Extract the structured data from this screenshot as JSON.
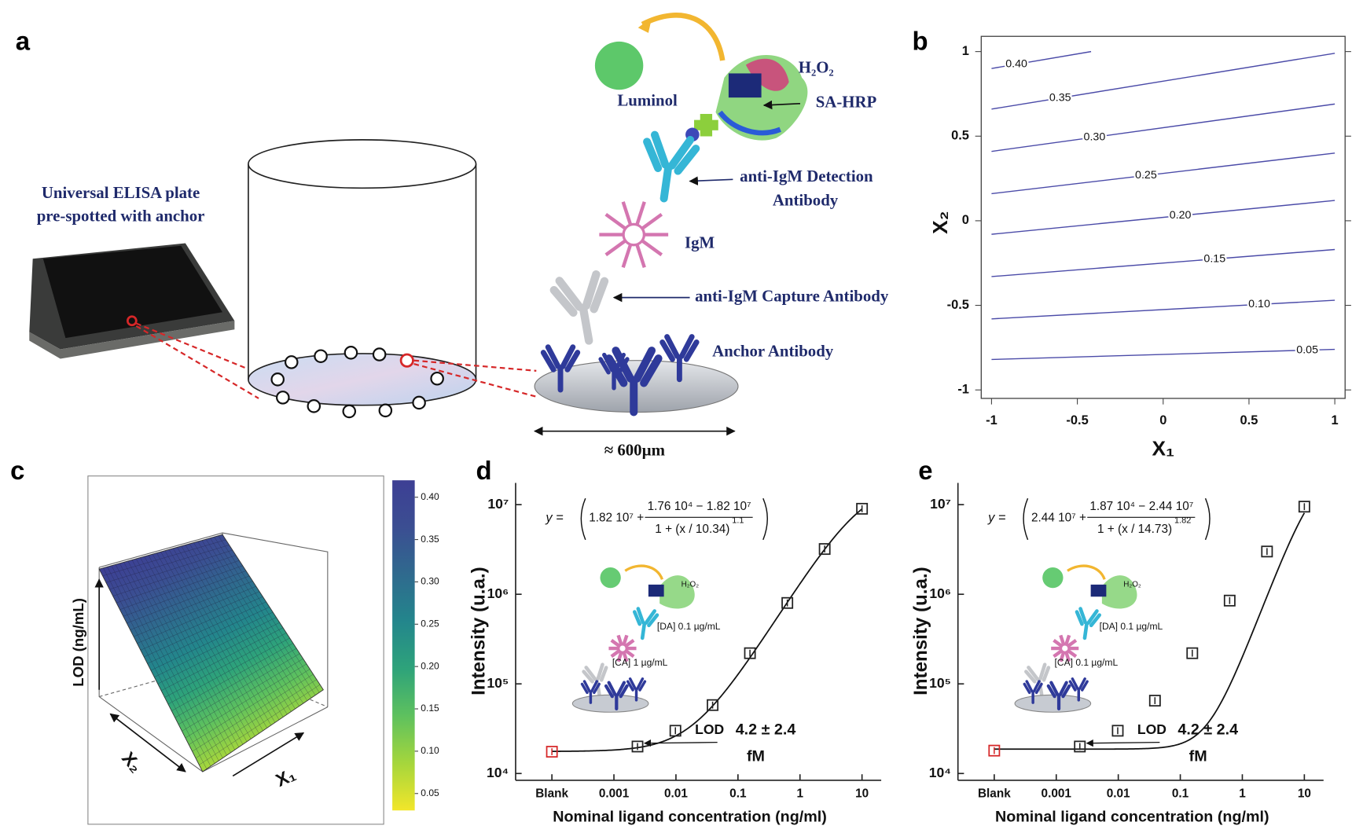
{
  "panel_labels": [
    "a",
    "b",
    "c",
    "d",
    "e"
  ],
  "diagram": {
    "plate_label": [
      "Universal ELISA plate",
      "pre-spotted with anchor"
    ],
    "luminol": "Luminol",
    "h2o2": "H₂O₂",
    "sa_hrp": "SA-HRP",
    "detection": [
      "anti-IgM Detection",
      "Antibody"
    ],
    "igm": "IgM",
    "capture": "anti-IgM Capture Antibody",
    "anchor": "Anchor Antibody",
    "scale": "≈ 600µm"
  },
  "chart_data": [
    {
      "type": "contour",
      "xlabel": "X₁",
      "ylabel": "X₂",
      "xlim": [
        -1.06,
        1.06
      ],
      "ylim": [
        -1.05,
        1.09
      ],
      "xticks": [
        -1,
        -0.5,
        0,
        0.5,
        1
      ],
      "yticks": [
        -1,
        -0.5,
        0,
        0.5,
        1
      ],
      "color": "#4b4ba8",
      "contours": [
        {
          "level": 0.4,
          "label": "0.40",
          "x": [
            -1,
            -0.42
          ],
          "y": [
            0.9,
            1.0
          ]
        },
        {
          "level": 0.35,
          "label": "0.35",
          "x": [
            -1,
            1
          ],
          "y": [
            0.66,
            0.99
          ]
        },
        {
          "level": 0.3,
          "label": "0.30",
          "x": [
            -1,
            1
          ],
          "y": [
            0.41,
            0.69
          ]
        },
        {
          "level": 0.25,
          "label": "0.25",
          "x": [
            -1,
            1
          ],
          "y": [
            0.16,
            0.4
          ]
        },
        {
          "level": 0.2,
          "label": "0.20",
          "x": [
            -1,
            1
          ],
          "y": [
            -0.08,
            0.12
          ]
        },
        {
          "level": 0.15,
          "label": "0.15",
          "x": [
            -1,
            1
          ],
          "y": [
            -0.33,
            -0.17
          ]
        },
        {
          "level": 0.1,
          "label": "0.10",
          "x": [
            -1,
            1
          ],
          "y": [
            -0.58,
            -0.47
          ]
        },
        {
          "level": 0.05,
          "label": "0.05",
          "x": [
            -1,
            1
          ],
          "y": [
            -0.82,
            -0.76
          ]
        }
      ]
    },
    {
      "type": "surface",
      "zlabel": "LOD (ng/mL)",
      "xlabel": "X₁",
      "ylabel": "X₂",
      "colorbar": {
        "clim": [
          0.03,
          0.42
        ],
        "ticks": [
          0.05,
          {
            "value": 0.1,
            "label": "0.10"
          },
          0.15,
          {
            "value": 0.2,
            "label": "0.20"
          },
          0.25,
          {
            "value": 0.3,
            "label": "0.30"
          },
          0.35,
          {
            "value": 0.4,
            "label": "0.40"
          }
        ],
        "colors": [
          "#f2e62a",
          "#a5d63c",
          "#5ec15e",
          "#2ea37a",
          "#23868c",
          "#2f6a8e",
          "#3b4e92",
          "#3d3f94"
        ]
      }
    },
    {
      "type": "line",
      "xscale": "log",
      "yscale": "log",
      "xlabel": "Nominal ligand concentration (ng/ml)",
      "ylabel": "Intensity (u.a.)",
      "xlim": [
        2.6e-05,
        20.4
      ],
      "ylim": [
        8400,
        17500000
      ],
      "xticks": [
        {
          "value": 0.0001,
          "label": "Blank"
        },
        0.001,
        0.01,
        0.1,
        1,
        10
      ],
      "yticks": [
        {
          "value": 10000,
          "label": "10⁴"
        },
        {
          "value": 100000,
          "label": "10⁵"
        },
        {
          "value": 1000000,
          "label": "10⁶"
        },
        {
          "value": 10000000,
          "label": "10⁷"
        }
      ],
      "x": [
        0.0001,
        0.0024,
        0.0098,
        0.039,
        0.156,
        0.625,
        2.5,
        10
      ],
      "values": [
        17500,
        20000,
        30000,
        58000,
        220000,
        800000,
        3200000,
        9000000
      ],
      "point_colors": [
        "#d62728",
        "#222222",
        "#222222",
        "#222222",
        "#222222",
        "#222222",
        "#222222",
        "#222222"
      ],
      "fit": {
        "top": 18200000,
        "bottom": 17600,
        "ec50": 10.34,
        "hill": 1.1
      },
      "equation": {
        "prefix": "y =",
        "top": "1.82 10⁷ +",
        "numerator": "1.76 10⁴ − 1.82 10⁷",
        "denominator": "1 + (x / 10.34)",
        "exponent": "1.1"
      },
      "inset": {
        "h2o2": "H₂O₂",
        "da": "[DA] 0.1 µg/mL",
        "ca": "[CA] 1 µg/mL"
      },
      "annotation": {
        "lod": "LOD",
        "value": "4.2 ± 2.4",
        "unit": "fM"
      }
    },
    {
      "type": "line",
      "xscale": "log",
      "yscale": "log",
      "xlabel": "Nominal ligand concentration (ng/ml)",
      "ylabel": "Intensity (u.a.)",
      "xlim": [
        2.6e-05,
        20.4
      ],
      "ylim": [
        8400,
        17500000
      ],
      "xticks": [
        {
          "value": 0.0001,
          "label": "Blank"
        },
        0.001,
        0.01,
        0.1,
        1,
        10
      ],
      "yticks": [
        {
          "value": 10000,
          "label": "10⁴"
        },
        {
          "value": 100000,
          "label": "10⁵"
        },
        {
          "value": 1000000,
          "label": "10⁶"
        },
        {
          "value": 10000000,
          "label": "10⁷"
        }
      ],
      "x": [
        0.0001,
        0.0024,
        0.0098,
        0.039,
        0.156,
        0.625,
        2.5,
        10
      ],
      "values": [
        18000,
        20000,
        30000,
        65000,
        220000,
        850000,
        3000000,
        9500000
      ],
      "point_colors": [
        "#d62728",
        "#222222",
        "#222222",
        "#222222",
        "#222222",
        "#222222",
        "#222222",
        "#222222"
      ],
      "fit": {
        "top": 24400000,
        "bottom": 18700,
        "ec50": 14.73,
        "hill": 1.82
      },
      "equation": {
        "prefix": "y =",
        "top": "2.44 10⁷ +",
        "numerator": "1.87 10⁴ − 2.44 10⁷",
        "denominator": "1 + (x / 14.73)",
        "exponent": "1.82"
      },
      "inset": {
        "h2o2": "H₂O₂",
        "da": "[DA] 0.1 µg/mL",
        "ca": "[CA] 0.1 µg/mL"
      },
      "annotation": {
        "lod": "LOD",
        "value": "4.2 ± 2.4",
        "unit": "fM"
      }
    }
  ]
}
